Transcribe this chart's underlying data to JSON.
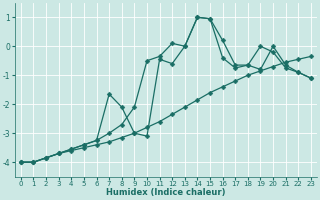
{
  "xlabel": "Humidex (Indice chaleur)",
  "bg_color": "#cce8e4",
  "line_color": "#1a6e65",
  "xlim": [
    -0.5,
    23.5
  ],
  "ylim": [
    -4.5,
    1.5
  ],
  "yticks": [
    -4,
    -3,
    -2,
    -1,
    0,
    1
  ],
  "xticks": [
    0,
    1,
    2,
    3,
    4,
    5,
    6,
    7,
    8,
    9,
    10,
    11,
    12,
    13,
    14,
    15,
    16,
    17,
    18,
    19,
    20,
    21,
    22,
    23
  ],
  "series": [
    {
      "x": [
        0,
        1,
        2,
        3,
        4,
        5,
        6,
        7,
        8,
        9,
        10,
        11,
        12,
        13,
        14,
        15,
        16,
        17,
        18,
        19,
        20,
        21,
        22,
        23
      ],
      "y": [
        -4.0,
        -4.0,
        -3.85,
        -3.7,
        -3.6,
        -3.5,
        -3.4,
        -3.3,
        -3.15,
        -3.0,
        -2.8,
        -2.6,
        -2.35,
        -2.1,
        -1.85,
        -1.6,
        -1.4,
        -1.2,
        -1.0,
        -0.85,
        -0.7,
        -0.55,
        -0.45,
        -0.35
      ]
    },
    {
      "x": [
        0,
        1,
        2,
        3,
        4,
        5,
        6,
        7,
        8,
        9,
        10,
        11,
        12,
        13,
        14,
        15,
        16,
        17,
        18,
        19,
        20,
        21,
        22,
        23
      ],
      "y": [
        -4.0,
        -4.0,
        -3.85,
        -3.7,
        -3.55,
        -3.4,
        -3.25,
        -3.0,
        -2.7,
        -2.1,
        -0.5,
        -0.35,
        0.1,
        0.0,
        1.0,
        0.95,
        0.2,
        -0.65,
        -0.65,
        -0.8,
        0.0,
        -0.65,
        -0.9,
        -1.1
      ]
    },
    {
      "x": [
        0,
        1,
        2,
        3,
        4,
        5,
        6,
        7,
        8,
        9,
        10,
        11,
        12,
        13,
        14,
        15,
        16,
        17,
        18,
        19,
        20,
        21,
        22,
        23
      ],
      "y": [
        -4.0,
        -4.0,
        -3.85,
        -3.7,
        -3.55,
        -3.4,
        -3.25,
        -1.65,
        -2.1,
        -3.0,
        -3.1,
        -0.45,
        -0.6,
        0.0,
        1.0,
        0.95,
        -0.4,
        -0.75,
        -0.65,
        0.0,
        -0.2,
        -0.75,
        -0.9,
        -1.1
      ]
    }
  ]
}
